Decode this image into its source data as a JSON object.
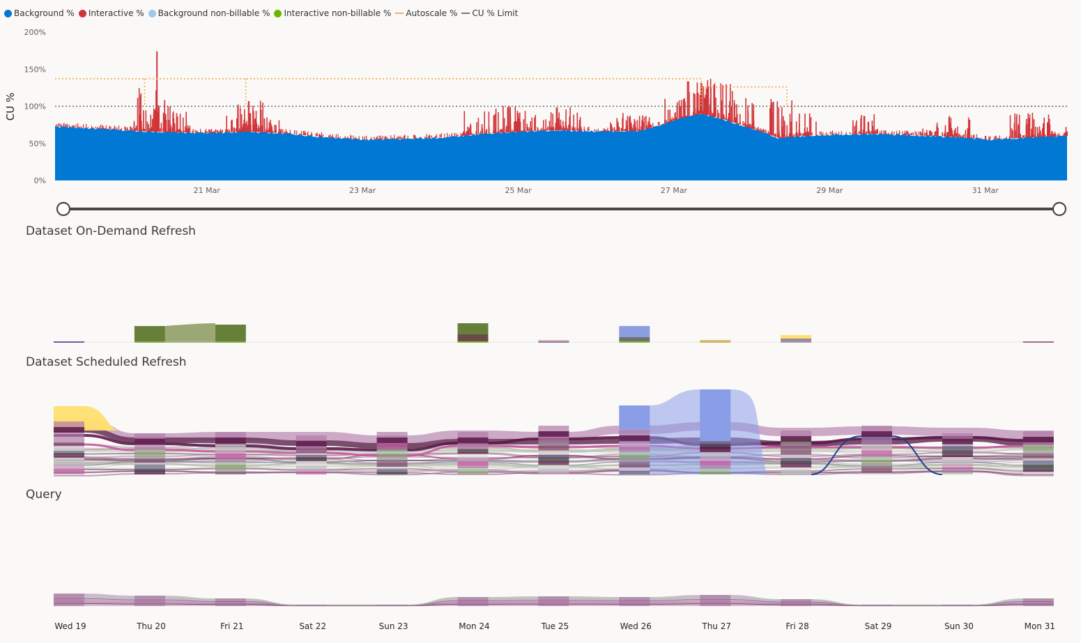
{
  "colors": {
    "background": "#0078d4",
    "interactive": "#d13438",
    "background_nonbillable": "#9dc8f0",
    "interactive_nonbillable": "#6bb700",
    "autoscale": "#f2a33a",
    "cu_limit": "#7a7574"
  },
  "legend": [
    {
      "label": "Background %",
      "color": "#0078d4",
      "shape": "dot"
    },
    {
      "label": "Interactive %",
      "color": "#d13438",
      "shape": "dot"
    },
    {
      "label": "Background non-billable %",
      "color": "#9dc8f0",
      "shape": "dot"
    },
    {
      "label": "Interactive non-billable %",
      "color": "#6bb700",
      "shape": "dot"
    },
    {
      "label": "Autoscale %",
      "color": "#e8b36a",
      "shape": "line"
    },
    {
      "label": "CU % Limit",
      "color": "#7a7574",
      "shape": "line"
    }
  ],
  "sections": {
    "on_demand": "Dataset On-Demand Refresh",
    "scheduled": "Dataset Scheduled Refresh",
    "query": "Query"
  },
  "chart_data": [
    {
      "type": "bar",
      "ylabel": "CU %",
      "ylim": [
        0,
        200
      ],
      "yticks": [
        "0%",
        "50%",
        "100%",
        "150%",
        "200%"
      ],
      "xtick_labels": [
        "21 Mar",
        "23 Mar",
        "25 Mar",
        "27 Mar",
        "29 Mar",
        "31 Mar"
      ],
      "x_range_days": [
        19.0,
        32.0
      ],
      "cu_limit": 100,
      "legend_position": "top-left",
      "background_profile": [
        [
          19.0,
          73
        ],
        [
          19.5,
          70
        ],
        [
          20.0,
          67
        ],
        [
          20.5,
          65
        ],
        [
          21.0,
          64
        ],
        [
          21.5,
          66
        ],
        [
          22.0,
          63
        ],
        [
          22.5,
          58
        ],
        [
          23.0,
          55
        ],
        [
          23.5,
          56
        ],
        [
          24.0,
          58
        ],
        [
          24.5,
          63
        ],
        [
          25.0,
          66
        ],
        [
          25.5,
          68
        ],
        [
          26.0,
          66
        ],
        [
          26.5,
          67
        ],
        [
          26.8,
          75
        ],
        [
          27.0,
          83
        ],
        [
          27.3,
          90
        ],
        [
          27.6,
          82
        ],
        [
          28.0,
          68
        ],
        [
          28.3,
          57
        ],
        [
          28.6,
          60
        ],
        [
          29.0,
          62
        ],
        [
          29.5,
          63
        ],
        [
          30.0,
          61
        ],
        [
          30.5,
          59
        ],
        [
          31.0,
          55
        ],
        [
          31.5,
          58
        ],
        [
          32.0,
          60
        ]
      ],
      "interactive_spikes": [
        [
          20.15,
          127
        ],
        [
          20.35,
          112
        ],
        [
          20.55,
          93
        ],
        [
          21.35,
          93
        ],
        [
          21.5,
          112
        ],
        [
          21.7,
          85
        ],
        [
          24.4,
          95
        ],
        [
          24.8,
          103
        ],
        [
          25.0,
          96
        ],
        [
          25.4,
          92
        ],
        [
          25.6,
          99
        ],
        [
          26.3,
          94
        ],
        [
          26.5,
          88
        ],
        [
          27.0,
          113
        ],
        [
          27.25,
          140
        ],
        [
          27.4,
          138
        ],
        [
          27.6,
          131
        ],
        [
          27.8,
          118
        ],
        [
          28.35,
          110
        ],
        [
          28.6,
          92
        ],
        [
          29.4,
          90
        ],
        [
          30.3,
          78
        ],
        [
          30.6,
          88
        ],
        [
          31.4,
          92
        ],
        [
          31.6,
          96
        ],
        [
          31.9,
          80
        ]
      ],
      "interactive_peak": [
        20.3,
        174
      ],
      "autoscale_series": [
        {
          "x_start": 19.0,
          "x_end": 20.15,
          "value": 137
        },
        {
          "x_start": 20.15,
          "x_end": 21.45,
          "value": 137
        },
        {
          "x_start": 27.3,
          "x_end": 28.4,
          "value": 126
        },
        {
          "x_start": 28.4,
          "x_end": 32.0,
          "value": 100
        }
      ]
    },
    {
      "type": "area",
      "title": "Dataset On-Demand Refresh",
      "categories": [
        "Wed 19",
        "Thu 20",
        "Fri 21",
        "Sat 22",
        "Sun 23",
        "Mon 24",
        "Tue 25",
        "Wed 26",
        "Thu 27",
        "Fri 28",
        "Sat 29",
        "Sun 30",
        "Mon 31"
      ]
    },
    {
      "type": "area",
      "title": "Dataset Scheduled Refresh",
      "categories": [
        "Wed 19",
        "Thu 20",
        "Fri 21",
        "Sat 22",
        "Sun 23",
        "Mon 24",
        "Tue 25",
        "Wed 26",
        "Thu 27",
        "Fri 28",
        "Sat 29",
        "Sun 30",
        "Mon 31"
      ]
    },
    {
      "type": "area",
      "title": "Query",
      "categories": [
        "Wed 19",
        "Thu 20",
        "Fri 21",
        "Sat 22",
        "Sun 23",
        "Mon 24",
        "Tue 25",
        "Wed 26",
        "Thu 27",
        "Fri 28",
        "Sat 29",
        "Sun 30",
        "Mon 31"
      ]
    }
  ]
}
